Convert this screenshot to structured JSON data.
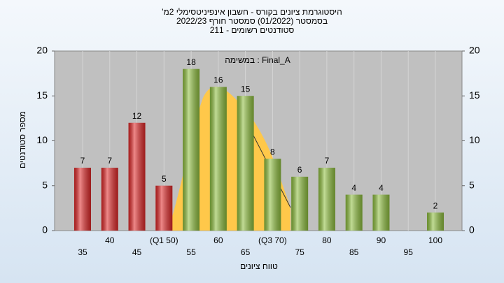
{
  "chart_data": {
    "type": "bar",
    "title": "'היסטוגרמת ציונים בקורס - חשבון אינפיניטסימלי 2מ",
    "subtitle": "בסמסטר  (01/2022)  סמסטר חורף 2022/23",
    "subtitle2": "סטודנטים רשומים - 211",
    "annotation": "במשימה : Final_A",
    "x_label": "טווח ציונים",
    "y_label": "מספר סטודנטים",
    "categories": [
      "35",
      "40",
      "45",
      "(Q1 50)",
      "55",
      "60",
      "65",
      "(Q3 70)",
      "75",
      "80",
      "85",
      "90",
      "95",
      "100"
    ],
    "values": [
      7,
      7,
      12,
      5,
      18,
      16,
      15,
      8,
      6,
      7,
      4,
      4,
      null,
      2
    ],
    "colors": [
      "#e02828",
      "#e02828",
      "#e02828",
      "#e02828",
      "#8fbf3f",
      "#8fbf3f",
      "#8fbf3f",
      "#8fbf3f",
      "#8fbf3f",
      "#8fbf3f",
      "#8fbf3f",
      "#8fbf3f",
      "#8fbf3f",
      "#8fbf3f"
    ],
    "ylim": [
      0,
      20
    ],
    "yticks": [
      0,
      5,
      10,
      15,
      20
    ],
    "y2ticks": [
      0,
      5,
      10,
      15,
      20
    ]
  }
}
